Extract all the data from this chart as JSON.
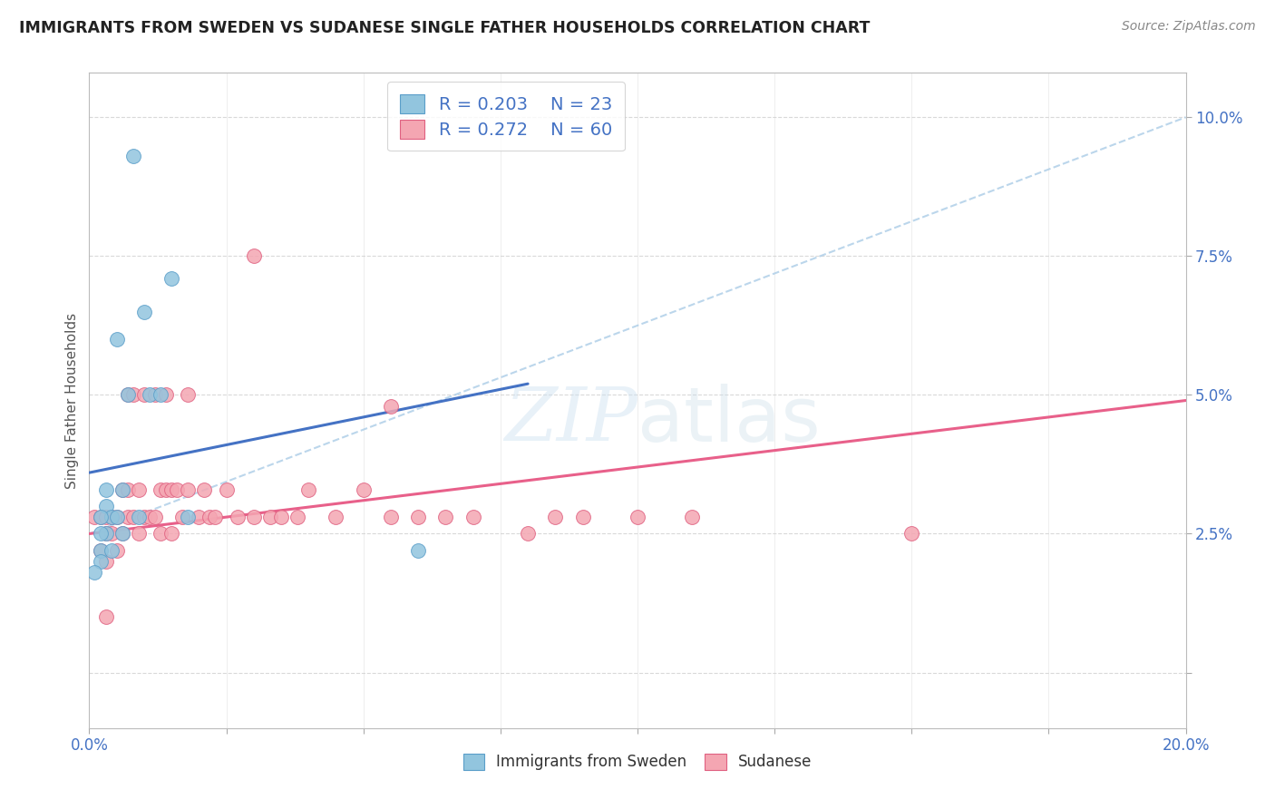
{
  "title": "IMMIGRANTS FROM SWEDEN VS SUDANESE SINGLE FATHER HOUSEHOLDS CORRELATION CHART",
  "source": "Source: ZipAtlas.com",
  "ylabel": "Single Father Households",
  "xlim": [
    0.0,
    0.2
  ],
  "ylim": [
    -0.01,
    0.108
  ],
  "sweden_color": "#92c5de",
  "sweden_edge": "#5a9ec9",
  "sudanese_color": "#f4a6b2",
  "sudanese_edge": "#e06080",
  "sweden_R": 0.203,
  "sweden_N": 23,
  "sudanese_R": 0.272,
  "sudanese_N": 60,
  "sweden_line_color": "#4472c4",
  "sudanese_line_color": "#e8608a",
  "dash_line_color": "#b0cfe8",
  "background_color": "#ffffff",
  "grid_color": "#d0d0d0",
  "title_color": "#222222",
  "tick_color": "#4472c4",
  "sweden_scatter_x": [
    0.008,
    0.015,
    0.01,
    0.005,
    0.007,
    0.011,
    0.013,
    0.003,
    0.006,
    0.003,
    0.004,
    0.002,
    0.003,
    0.006,
    0.06,
    0.002,
    0.004,
    0.002,
    0.001,
    0.002,
    0.005,
    0.009,
    0.018
  ],
  "sweden_scatter_y": [
    0.093,
    0.071,
    0.065,
    0.06,
    0.05,
    0.05,
    0.05,
    0.033,
    0.033,
    0.03,
    0.028,
    0.028,
    0.025,
    0.025,
    0.022,
    0.022,
    0.022,
    0.02,
    0.018,
    0.025,
    0.028,
    0.028,
    0.028
  ],
  "sudanese_scatter_x": [
    0.001,
    0.002,
    0.002,
    0.003,
    0.003,
    0.003,
    0.004,
    0.004,
    0.005,
    0.005,
    0.006,
    0.006,
    0.007,
    0.007,
    0.007,
    0.008,
    0.008,
    0.009,
    0.009,
    0.01,
    0.01,
    0.011,
    0.012,
    0.012,
    0.013,
    0.013,
    0.014,
    0.014,
    0.015,
    0.015,
    0.016,
    0.017,
    0.018,
    0.018,
    0.02,
    0.021,
    0.022,
    0.023,
    0.025,
    0.027,
    0.03,
    0.03,
    0.033,
    0.035,
    0.038,
    0.04,
    0.045,
    0.05,
    0.055,
    0.06,
    0.065,
    0.07,
    0.08,
    0.085,
    0.09,
    0.1,
    0.11,
    0.15,
    0.003,
    0.055
  ],
  "sudanese_scatter_y": [
    0.028,
    0.028,
    0.022,
    0.028,
    0.025,
    0.02,
    0.028,
    0.025,
    0.028,
    0.022,
    0.033,
    0.025,
    0.05,
    0.033,
    0.028,
    0.05,
    0.028,
    0.033,
    0.025,
    0.05,
    0.028,
    0.028,
    0.05,
    0.028,
    0.033,
    0.025,
    0.05,
    0.033,
    0.033,
    0.025,
    0.033,
    0.028,
    0.05,
    0.033,
    0.028,
    0.033,
    0.028,
    0.028,
    0.033,
    0.028,
    0.075,
    0.028,
    0.028,
    0.028,
    0.028,
    0.033,
    0.028,
    0.033,
    0.028,
    0.028,
    0.028,
    0.028,
    0.025,
    0.028,
    0.028,
    0.028,
    0.028,
    0.025,
    0.01,
    0.048
  ],
  "sweden_line_x0": 0.0,
  "sweden_line_y0": 0.036,
  "sweden_line_x1": 0.08,
  "sweden_line_y1": 0.052,
  "sudanese_line_x0": 0.0,
  "sudanese_line_y0": 0.025,
  "sudanese_line_x1": 0.2,
  "sudanese_line_y1": 0.049,
  "dash_line_x0": 0.0,
  "dash_line_y0": 0.025,
  "dash_line_x1": 0.2,
  "dash_line_y1": 0.1
}
